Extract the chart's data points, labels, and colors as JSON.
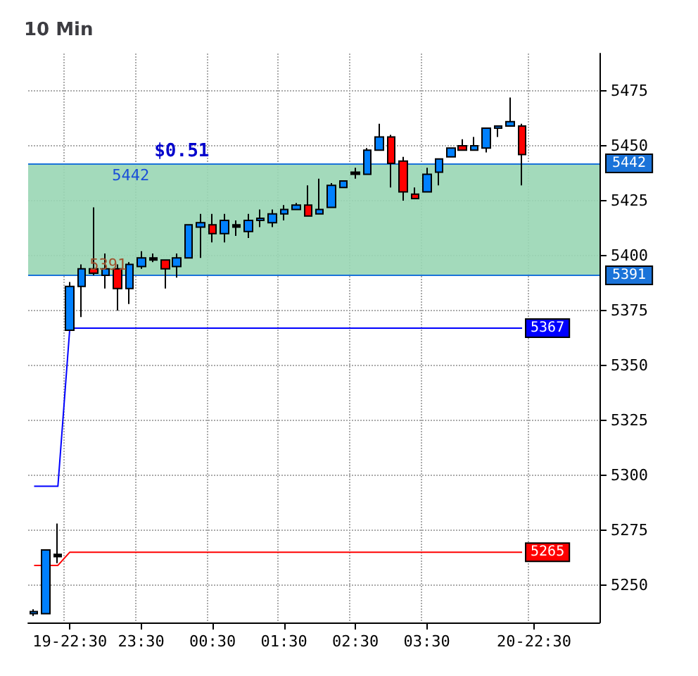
{
  "chart_data": {
    "type": "candlestick",
    "title": "10 Min",
    "categories": [
      null,
      null,
      null,
      "19-22:30",
      null,
      null,
      null,
      null,
      null,
      "23:30",
      null,
      null,
      null,
      null,
      null,
      "00:30",
      null,
      null,
      null,
      null,
      null,
      "01:30",
      null,
      null,
      null,
      null,
      null,
      "02:30",
      null,
      null,
      null,
      null,
      null,
      "03:30",
      null,
      null,
      null,
      null,
      null,
      null,
      null,
      null,
      "20-22:30",
      null,
      null,
      null,
      null,
      null
    ],
    "ohlc": [
      [
        5237,
        5239,
        5236,
        5238
      ],
      [
        5237,
        5266,
        5237,
        5266
      ],
      [
        5263,
        5278,
        5260,
        5264
      ],
      [
        5366,
        5388,
        5366,
        5386
      ],
      [
        5386,
        5396,
        5372,
        5394
      ],
      [
        5394,
        5422,
        5391,
        5392
      ],
      [
        5391,
        5401,
        5385,
        5394
      ],
      [
        5394,
        5396,
        5375,
        5385
      ],
      [
        5385,
        5397,
        5378,
        5396
      ],
      [
        5395,
        5402,
        5394,
        5399
      ],
      [
        5398,
        5401,
        5397,
        5399
      ],
      [
        5398,
        5398,
        5385,
        5394
      ],
      [
        5395,
        5401,
        5390,
        5399
      ],
      [
        5399,
        5414,
        5399,
        5414
      ],
      [
        5413,
        5419,
        5399,
        5415
      ],
      [
        5414,
        5419,
        5406,
        5410
      ],
      [
        5410,
        5419,
        5406,
        5416
      ],
      [
        5413,
        5416,
        5409,
        5414
      ],
      [
        5411,
        5419,
        5408,
        5416
      ],
      [
        5416,
        5421,
        5413,
        5417
      ],
      [
        5415,
        5421,
        5413,
        5419
      ],
      [
        5419,
        5423,
        5416,
        5421
      ],
      [
        5421,
        5424,
        5421,
        5423
      ],
      [
        5423,
        5432,
        5418,
        5418
      ],
      [
        5419,
        5435,
        5419,
        5421
      ],
      [
        5422,
        5433,
        5422,
        5432
      ],
      [
        5431,
        5434,
        5431,
        5434
      ],
      [
        5437,
        5440,
        5435,
        5438
      ],
      [
        5437,
        5449,
        5437,
        5448
      ],
      [
        5448,
        5460,
        5448,
        5454
      ],
      [
        5454,
        5455,
        5431,
        5442
      ],
      [
        5443,
        5445,
        5425,
        5429
      ],
      [
        5428,
        5431,
        5426,
        5426
      ],
      [
        5429,
        5440,
        5429,
        5437
      ],
      [
        5438,
        5444,
        5432,
        5444
      ],
      [
        5445,
        5449,
        5445,
        5449
      ],
      [
        5450,
        5453,
        5448,
        5448
      ],
      [
        5448,
        5454,
        5448,
        5450
      ],
      [
        5449,
        5458,
        5447,
        5458
      ],
      [
        5458,
        5459,
        5454,
        5459
      ],
      [
        5459,
        5472,
        5459,
        5461
      ],
      [
        5459,
        5460,
        5432,
        5446
      ],
      null,
      null,
      null,
      null,
      null,
      null
    ],
    "colors": [
      "#0080ff",
      "#0080ff",
      "#000000",
      "#0080ff",
      "#0080ff",
      "#ff0000",
      "#0080ff",
      "#ff0000",
      "#0080ff",
      "#0080ff",
      "#000000",
      "#ff0000",
      "#0080ff",
      "#0080ff",
      "#0080ff",
      "#ff0000",
      "#0080ff",
      "#000000",
      "#0080ff",
      "#0080ff",
      "#0080ff",
      "#0080ff",
      "#0080ff",
      "#ff0000",
      "#0080ff",
      "#0080ff",
      "#0080ff",
      "#000000",
      "#0080ff",
      "#0080ff",
      "#ff0000",
      "#ff0000",
      "#ff0000",
      "#0080ff",
      "#0080ff",
      "#0080ff",
      "#ff0000",
      "#0080ff",
      "#0080ff",
      "#0080ff",
      "#0080ff",
      "#ff0000",
      null,
      null,
      null,
      null,
      null,
      null
    ],
    "series": [
      {
        "type": "line",
        "color": "#0000ff",
        "values": [
          5295,
          5295,
          5295,
          5367,
          5367,
          5367,
          5367,
          5367,
          5367,
          5367,
          5367,
          5367,
          5367,
          5367,
          5367,
          5367,
          5367,
          5367,
          5367,
          5367,
          5367,
          5367,
          5367,
          5367,
          5367,
          5367,
          5367,
          5367,
          5367,
          5367,
          5367,
          5367,
          5367,
          5367,
          5367,
          5367,
          5367,
          5367,
          5367,
          5367,
          5367,
          5367,
          null,
          null,
          null,
          null,
          null,
          null
        ],
        "value_labels": [
          null,
          null,
          null,
          null,
          null,
          null,
          null,
          null,
          null,
          null,
          null,
          null,
          null,
          null,
          null,
          null,
          null,
          null,
          null,
          null,
          null,
          null,
          null,
          null,
          null,
          null,
          null,
          null,
          null,
          null,
          null,
          null,
          null,
          null,
          null,
          null,
          null,
          null,
          null,
          null,
          null,
          "5367",
          null,
          null,
          null,
          null,
          null,
          null
        ]
      },
      {
        "type": "line",
        "color": "#ff0000",
        "values": [
          5259,
          5259,
          5259,
          5265,
          5265,
          5265,
          5265,
          5265,
          5265,
          5265,
          5265,
          5265,
          5265,
          5265,
          5265,
          5265,
          5265,
          5265,
          5265,
          5265,
          5265,
          5265,
          5265,
          5265,
          5265,
          5265,
          5265,
          5265,
          5265,
          5265,
          5265,
          5265,
          5265,
          5265,
          5265,
          5265,
          5265,
          5265,
          5265,
          5265,
          5265,
          5265,
          null,
          null,
          null,
          null,
          null,
          null
        ],
        "value_labels": [
          null,
          null,
          null,
          null,
          null,
          null,
          null,
          null,
          null,
          null,
          null,
          null,
          null,
          null,
          null,
          null,
          null,
          null,
          null,
          null,
          null,
          null,
          null,
          null,
          null,
          null,
          null,
          null,
          null,
          null,
          null,
          null,
          null,
          null,
          null,
          null,
          null,
          null,
          null,
          null,
          null,
          "5265",
          null,
          null,
          null,
          null,
          null,
          null
        ]
      }
    ],
    "ylim": [
      5233,
      5492
    ],
    "yticks": [
      5250,
      5275,
      5300,
      5325,
      5350,
      5375,
      5400,
      5425,
      5450,
      5475
    ],
    "grid": true,
    "ref_lines": [
      {
        "axis": "y",
        "value": 5442,
        "label": "5442",
        "color": "#1a73d9"
      },
      {
        "axis": "y",
        "value": 5391,
        "label": "5391",
        "color": "#1a73d9"
      }
    ],
    "bands": [
      {
        "axis": "y",
        "from": 5391,
        "to": 5442,
        "color": "#99d6b4"
      }
    ],
    "annotations": [
      "$0.51",
      "5442",
      "5391"
    ]
  }
}
